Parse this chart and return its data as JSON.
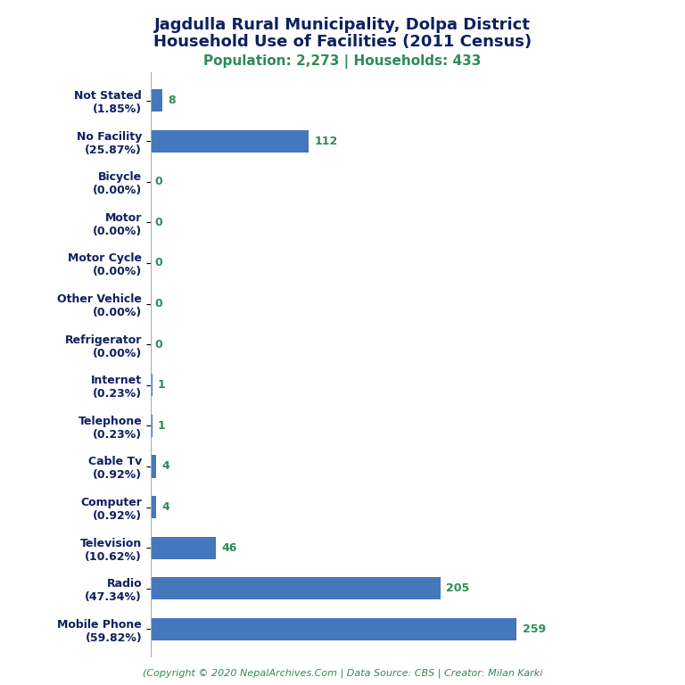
{
  "title_line1": "Jagdulla Rural Municipality, Dolpa District",
  "title_line2": "Household Use of Facilities (2011 Census)",
  "subtitle": "Population: 2,273 | Households: 433",
  "footer": "(Copyright © 2020 NepalArchives.Com | Data Source: CBS | Creator: Milan Karki",
  "categories": [
    "Mobile Phone\n(59.82%)",
    "Radio\n(47.34%)",
    "Television\n(10.62%)",
    "Computer\n(0.92%)",
    "Cable Tv\n(0.92%)",
    "Telephone\n(0.23%)",
    "Internet\n(0.23%)",
    "Refrigerator\n(0.00%)",
    "Other Vehicle\n(0.00%)",
    "Motor Cycle\n(0.00%)",
    "Motor\n(0.00%)",
    "Bicycle\n(0.00%)",
    "No Facility\n(25.87%)",
    "Not Stated\n(1.85%)"
  ],
  "values": [
    259,
    205,
    46,
    4,
    4,
    1,
    1,
    0,
    0,
    0,
    0,
    0,
    112,
    8
  ],
  "bar_color": "#4477bb",
  "title_color": "#0d2060",
  "subtitle_color": "#2e8b57",
  "value_color": "#2e8b57",
  "footer_color": "#2e8b57",
  "background_color": "#ffffff",
  "xlim": [
    0,
    320
  ]
}
